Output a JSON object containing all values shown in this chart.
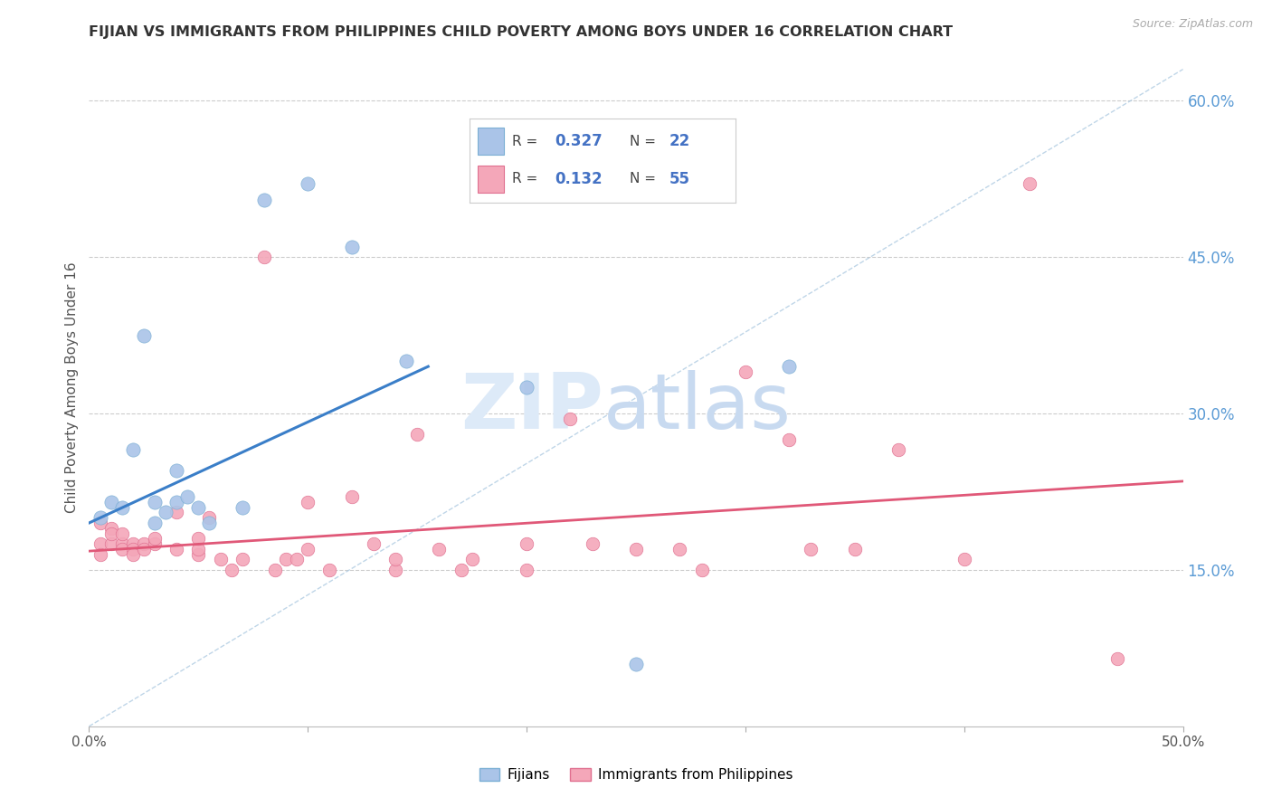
{
  "title": "FIJIAN VS IMMIGRANTS FROM PHILIPPINES CHILD POVERTY AMONG BOYS UNDER 16 CORRELATION CHART",
  "source": "Source: ZipAtlas.com",
  "ylabel": "Child Poverty Among Boys Under 16",
  "xlim": [
    0.0,
    0.5
  ],
  "ylim": [
    0.0,
    0.65
  ],
  "yticks_right": [
    0.15,
    0.3,
    0.45,
    0.6
  ],
  "ytick_labels_right": [
    "15.0%",
    "30.0%",
    "45.0%",
    "60.0%"
  ],
  "fijian_color": "#aac4e8",
  "fijian_edge": "#7bafd4",
  "phil_color": "#f4a7b9",
  "phil_edge": "#e07090",
  "fijian_points": [
    [
      0.005,
      0.2
    ],
    [
      0.01,
      0.215
    ],
    [
      0.015,
      0.21
    ],
    [
      0.02,
      0.265
    ],
    [
      0.025,
      0.375
    ],
    [
      0.03,
      0.195
    ],
    [
      0.03,
      0.215
    ],
    [
      0.035,
      0.205
    ],
    [
      0.04,
      0.245
    ],
    [
      0.04,
      0.215
    ],
    [
      0.045,
      0.22
    ],
    [
      0.05,
      0.21
    ],
    [
      0.055,
      0.195
    ],
    [
      0.07,
      0.21
    ],
    [
      0.08,
      0.505
    ],
    [
      0.1,
      0.52
    ],
    [
      0.12,
      0.46
    ],
    [
      0.145,
      0.35
    ],
    [
      0.2,
      0.325
    ],
    [
      0.25,
      0.06
    ],
    [
      0.32,
      0.345
    ]
  ],
  "phil_points": [
    [
      0.005,
      0.195
    ],
    [
      0.005,
      0.175
    ],
    [
      0.005,
      0.165
    ],
    [
      0.01,
      0.19
    ],
    [
      0.01,
      0.175
    ],
    [
      0.01,
      0.185
    ],
    [
      0.015,
      0.175
    ],
    [
      0.015,
      0.17
    ],
    [
      0.015,
      0.185
    ],
    [
      0.02,
      0.175
    ],
    [
      0.02,
      0.17
    ],
    [
      0.02,
      0.165
    ],
    [
      0.025,
      0.175
    ],
    [
      0.025,
      0.17
    ],
    [
      0.03,
      0.175
    ],
    [
      0.03,
      0.18
    ],
    [
      0.04,
      0.17
    ],
    [
      0.04,
      0.205
    ],
    [
      0.05,
      0.165
    ],
    [
      0.05,
      0.17
    ],
    [
      0.05,
      0.18
    ],
    [
      0.055,
      0.2
    ],
    [
      0.06,
      0.16
    ],
    [
      0.065,
      0.15
    ],
    [
      0.07,
      0.16
    ],
    [
      0.08,
      0.45
    ],
    [
      0.085,
      0.15
    ],
    [
      0.09,
      0.16
    ],
    [
      0.095,
      0.16
    ],
    [
      0.1,
      0.17
    ],
    [
      0.1,
      0.215
    ],
    [
      0.11,
      0.15
    ],
    [
      0.12,
      0.22
    ],
    [
      0.13,
      0.175
    ],
    [
      0.14,
      0.15
    ],
    [
      0.14,
      0.16
    ],
    [
      0.15,
      0.28
    ],
    [
      0.16,
      0.17
    ],
    [
      0.17,
      0.15
    ],
    [
      0.175,
      0.16
    ],
    [
      0.2,
      0.15
    ],
    [
      0.2,
      0.175
    ],
    [
      0.22,
      0.295
    ],
    [
      0.23,
      0.175
    ],
    [
      0.25,
      0.17
    ],
    [
      0.27,
      0.17
    ],
    [
      0.28,
      0.15
    ],
    [
      0.3,
      0.34
    ],
    [
      0.32,
      0.275
    ],
    [
      0.33,
      0.17
    ],
    [
      0.35,
      0.17
    ],
    [
      0.37,
      0.265
    ],
    [
      0.4,
      0.16
    ],
    [
      0.43,
      0.52
    ],
    [
      0.47,
      0.065
    ]
  ],
  "fijian_trend_x": [
    0.0,
    0.155
  ],
  "fijian_trend_y": [
    0.195,
    0.345
  ],
  "phil_trend_x": [
    0.0,
    0.5
  ],
  "phil_trend_y": [
    0.168,
    0.235
  ],
  "dashed_line_x": [
    0.0,
    0.5
  ],
  "dashed_line_y": [
    0.0,
    0.63
  ],
  "bg_color": "#ffffff",
  "grid_color": "#cccccc",
  "title_color": "#333333",
  "right_tick_color": "#5b9bd5",
  "legend_R_color": "#4472c4",
  "legend_N_color": "#4472c4"
}
